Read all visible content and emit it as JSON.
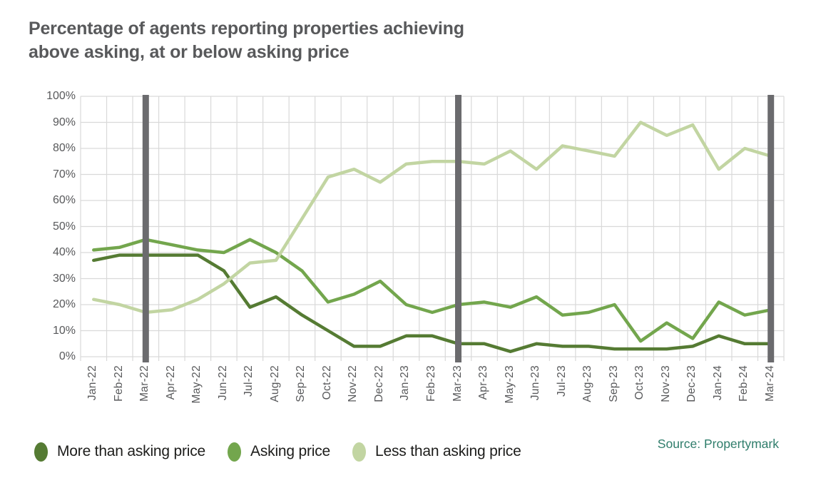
{
  "title": {
    "line1": "Percentage of agents reporting properties achieving",
    "line2": "above asking, at or below asking price"
  },
  "source": {
    "label": "Source: Propertymark"
  },
  "chart_data": {
    "type": "line",
    "title": "Percentage of agents reporting properties achieving above asking, at or below asking price",
    "xlabel": "",
    "ylabel": "",
    "ylim": [
      0,
      100
    ],
    "grid": "both",
    "legend_position": "bottom",
    "categories": [
      "Jan-22",
      "Feb-22",
      "Mar-22",
      "Apr-22",
      "May-22",
      "Jun-22",
      "Jul-22",
      "Aug-22",
      "Sep-22",
      "Oct-22",
      "Nov-22",
      "Dec-22",
      "Jan-23",
      "Feb-23",
      "Mar-23",
      "Apr-23",
      "May-23",
      "Jun-23",
      "Jul-23",
      "Aug-23",
      "Sep-23",
      "Oct-23",
      "Nov-23",
      "Dec-23",
      "Jan-24",
      "Feb-24",
      "Mar-24"
    ],
    "series": [
      {
        "name": "More than asking price",
        "color": "#557b33",
        "values": [
          37,
          39,
          39,
          39,
          39,
          33,
          19,
          23,
          16,
          10,
          4,
          4,
          8,
          8,
          5,
          5,
          2,
          5,
          4,
          4,
          3,
          3,
          3,
          4,
          8,
          5,
          5
        ]
      },
      {
        "name": "Asking price",
        "color": "#73a64d",
        "values": [
          41,
          42,
          45,
          43,
          41,
          40,
          45,
          40,
          33,
          21,
          24,
          29,
          20,
          17,
          20,
          21,
          19,
          23,
          16,
          17,
          20,
          6,
          13,
          7,
          21,
          16,
          18
        ]
      },
      {
        "name": "Less than asking price",
        "color": "#c2d5a2",
        "values": [
          22,
          20,
          17,
          18,
          22,
          28,
          36,
          37,
          53,
          69,
          72,
          67,
          74,
          75,
          75,
          74,
          79,
          72,
          81,
          79,
          77,
          90,
          85,
          89,
          72,
          80,
          77
        ]
      }
    ],
    "yticks": [
      {
        "value": 0,
        "label": "0%"
      },
      {
        "value": 10,
        "label": "10%"
      },
      {
        "value": 20,
        "label": "20%"
      },
      {
        "value": 30,
        "label": "30%"
      },
      {
        "value": 40,
        "label": "40%"
      },
      {
        "value": 50,
        "label": "50%"
      },
      {
        "value": 60,
        "label": "60%"
      },
      {
        "value": 70,
        "label": "70%"
      },
      {
        "value": 80,
        "label": "80%"
      },
      {
        "value": 90,
        "label": "90%"
      },
      {
        "value": 100,
        "label": "100%"
      }
    ],
    "highlight_columns": [
      "Mar-22",
      "Mar-23",
      "Mar-24"
    ],
    "colors": {
      "grid": "#d9d9d9",
      "highlight_bar": "#6b6b6e",
      "axis_text": "#58595b"
    }
  }
}
